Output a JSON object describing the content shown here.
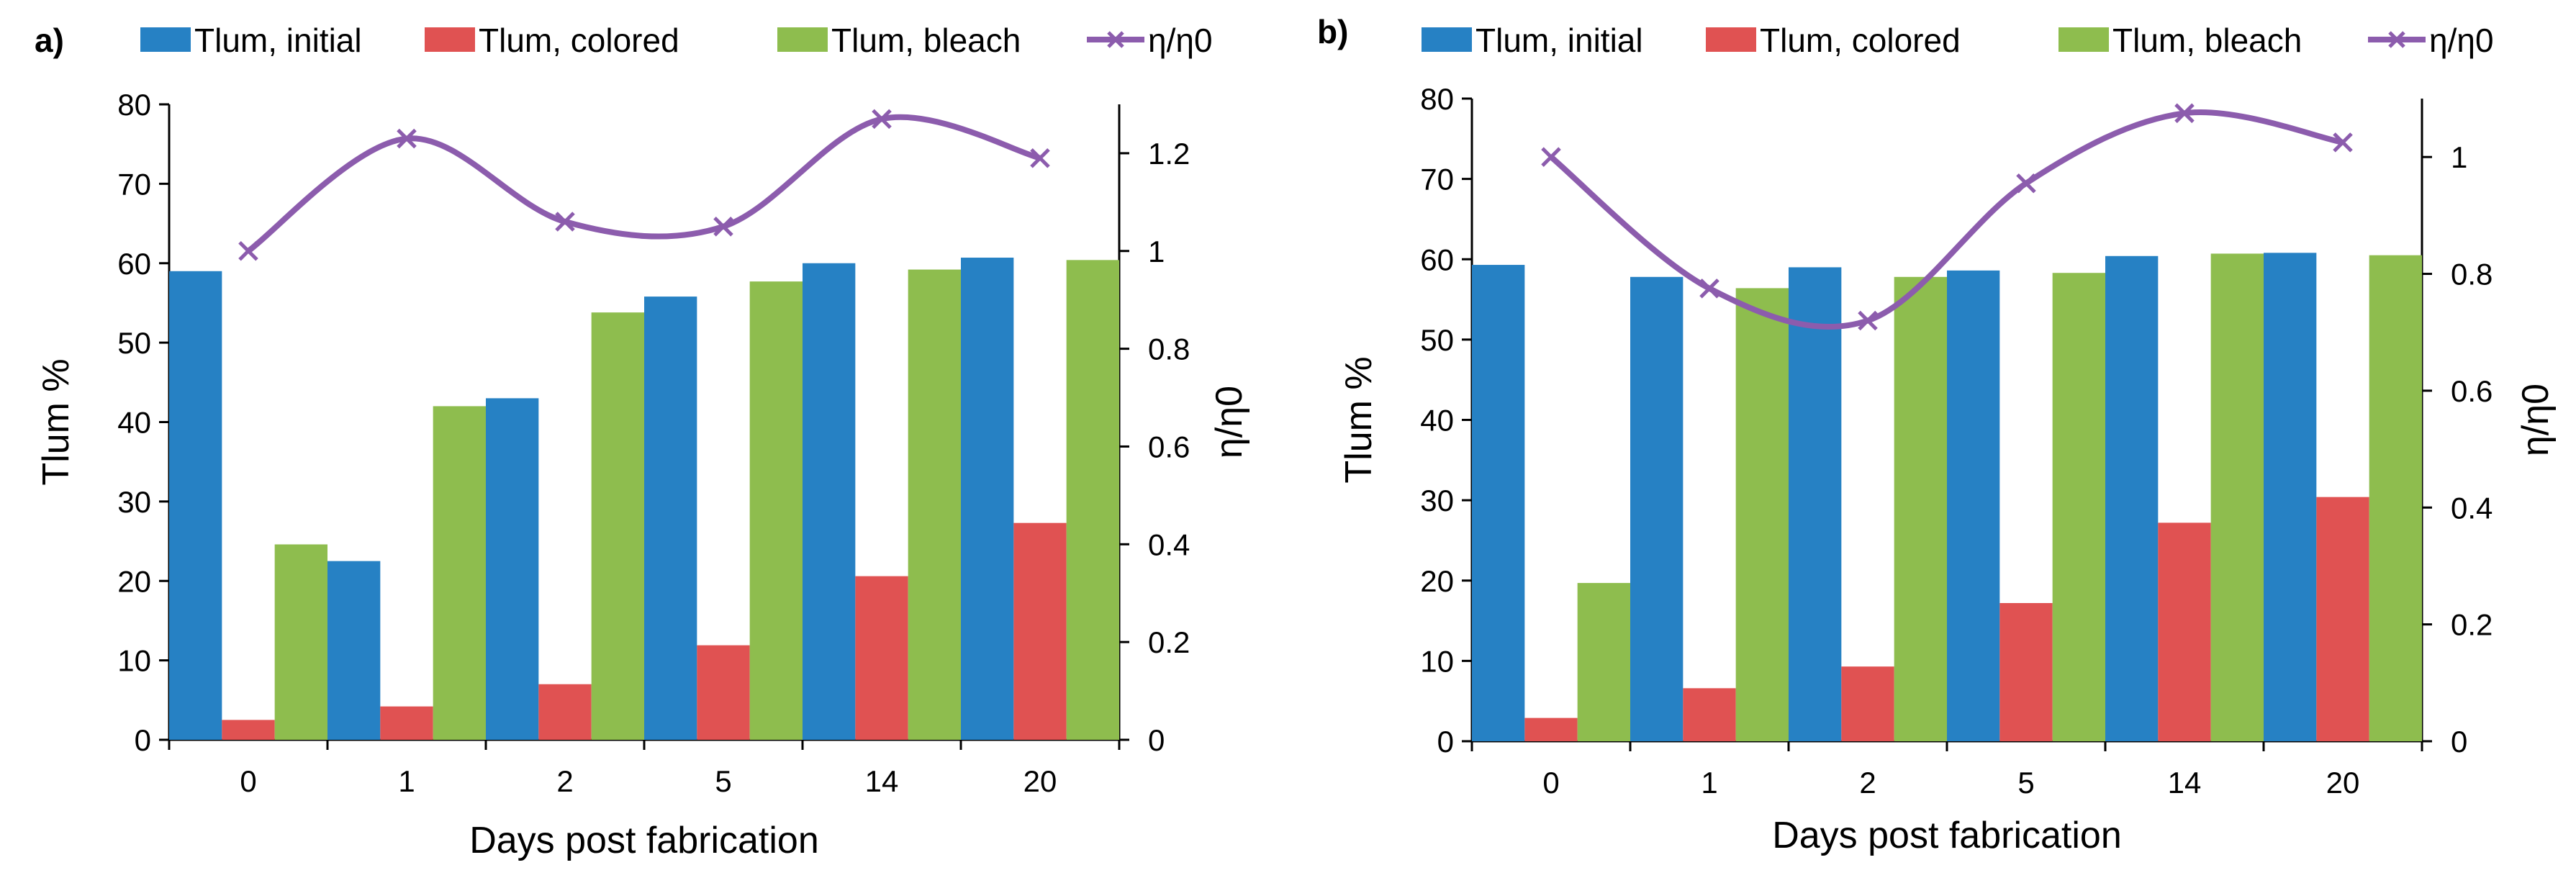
{
  "chart_data": [
    {
      "panel_label": "a)",
      "type": "bar",
      "categories": [
        "0",
        "1",
        "2",
        "5",
        "14",
        "20"
      ],
      "series": [
        {
          "name": "Tlum, initial",
          "color": "#2681c4",
          "values": [
            59,
            22.5,
            43,
            55.8,
            60,
            60.7
          ]
        },
        {
          "name": "Tlum, colored",
          "color": "#e05252",
          "values": [
            2.5,
            4.2,
            7,
            11.9,
            20.6,
            27.3
          ]
        },
        {
          "name": "Tlum, bleach",
          "color": "#8ebd4e",
          "values": [
            24.6,
            42,
            53.8,
            57.7,
            59.2,
            60.4
          ]
        }
      ],
      "line_series": {
        "name": "η/η0",
        "color": "#8c5cad",
        "values": [
          1.0,
          1.23,
          1.06,
          1.05,
          1.27,
          1.19
        ]
      },
      "xlabel": "Days post fabrication",
      "ylabel": "Tlum %",
      "y2label": "η/η0",
      "ylim": [
        0,
        80
      ],
      "yticks": [
        "0",
        "10",
        "20",
        "30",
        "40",
        "50",
        "60",
        "70",
        "80"
      ],
      "y2lim": [
        0,
        1.3
      ],
      "y2ticks": [
        "0",
        "0.2",
        "0.4",
        "0.6",
        "0.8",
        "1",
        "1.2"
      ]
    },
    {
      "panel_label": "b)",
      "type": "bar",
      "categories": [
        "0",
        "1",
        "2",
        "5",
        "14",
        "20"
      ],
      "series": [
        {
          "name": "Tlum, initial",
          "color": "#2681c4",
          "values": [
            59.3,
            57.8,
            59,
            58.6,
            60.4,
            60.8
          ]
        },
        {
          "name": "Tlum, colored",
          "color": "#e05252",
          "values": [
            2.9,
            6.6,
            9.3,
            17.2,
            27.2,
            30.4
          ]
        },
        {
          "name": "Tlum, bleach",
          "color": "#8ebd4e",
          "values": [
            19.7,
            56.4,
            57.8,
            58.3,
            60.7,
            60.5
          ]
        }
      ],
      "line_series": {
        "name": "η/η0",
        "color": "#8c5cad",
        "values": [
          1.0,
          0.775,
          0.72,
          0.955,
          1.075,
          1.025
        ]
      },
      "xlabel": "Days post fabrication",
      "ylabel": "Tlum %",
      "y2label": "η/η0",
      "ylim": [
        0,
        80
      ],
      "yticks": [
        "0",
        "10",
        "20",
        "30",
        "40",
        "50",
        "60",
        "70",
        "80"
      ],
      "y2lim": [
        0,
        1.1
      ],
      "y2ticks": [
        "0",
        "0.2",
        "0.4",
        "0.6",
        "0.8",
        "1"
      ]
    }
  ]
}
